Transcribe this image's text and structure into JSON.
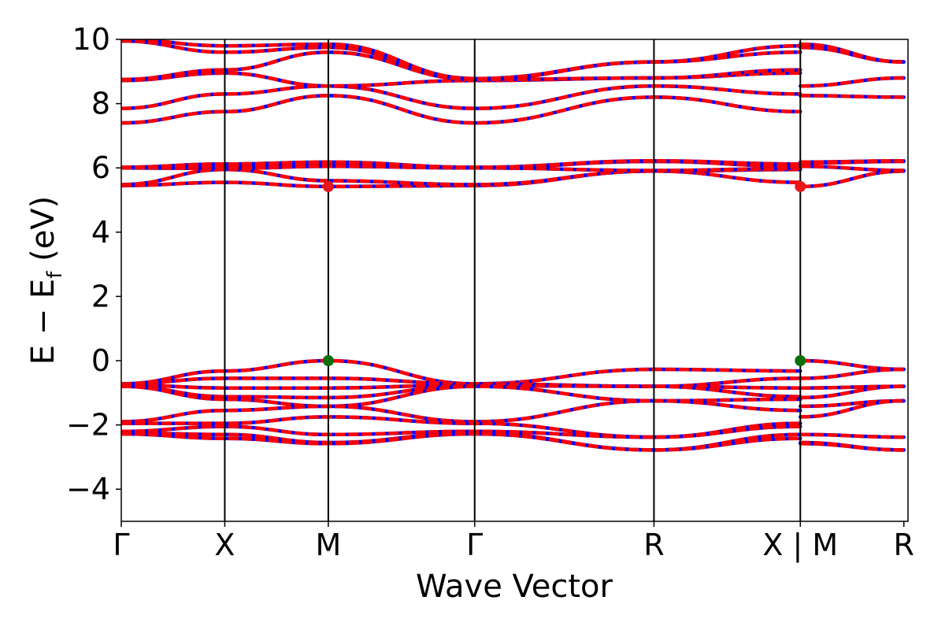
{
  "chart_data": {
    "type": "line",
    "title": "",
    "xlabel": "Wave Vector",
    "ylabel_main": "E − E",
    "ylabel_sub": "f",
    "ylabel_unit": " (eV)",
    "ylim": [
      -5,
      10
    ],
    "yticks": [
      -4,
      -2,
      0,
      2,
      4,
      6,
      8,
      10
    ],
    "ytick_labels": [
      "−4",
      "−2",
      "0",
      "2",
      "4",
      "6",
      "8",
      "10"
    ],
    "xlim": [
      0,
      7.6
    ],
    "kpoints": [
      {
        "label": "Γ",
        "x": 0.0
      },
      {
        "label": "X",
        "x": 1.0
      },
      {
        "label": "M",
        "x": 2.0
      },
      {
        "label": "Γ",
        "x": 3.414
      },
      {
        "label": "R",
        "x": 5.146
      },
      {
        "label": "X | M",
        "x": 6.56
      },
      {
        "label": "R",
        "x": 7.56
      }
    ],
    "colors": {
      "line_red": "#ff0000",
      "line_blue": "#0000ff",
      "cbm": "#e8151b",
      "vbm": "#0b6e0b",
      "axis": "#000000"
    },
    "band_segments": [
      {
        "x": [
          0,
          1.0,
          2.0,
          3.414,
          5.146,
          6.56
        ],
        "y": [
          -0.72,
          -0.32,
          0.0,
          -0.72,
          -0.27,
          -0.32
        ]
      },
      {
        "x": [
          0,
          1.0,
          2.0,
          3.414,
          5.146,
          6.56
        ],
        "y": [
          -0.72,
          -0.55,
          -0.55,
          -0.72,
          -0.8,
          -0.55
        ]
      },
      {
        "x": [
          0,
          1.0,
          2.0,
          3.414,
          5.146,
          6.56
        ],
        "y": [
          -0.75,
          -0.85,
          -0.85,
          -0.75,
          -0.8,
          -0.85
        ]
      },
      {
        "x": [
          0,
          1.0,
          2.0,
          3.414,
          5.146,
          6.56
        ],
        "y": [
          -0.78,
          -1.12,
          -1.15,
          -0.78,
          -0.8,
          -1.12
        ]
      },
      {
        "x": [
          0,
          1.0,
          2.0,
          3.414,
          5.146,
          6.56
        ],
        "y": [
          -0.8,
          -1.2,
          -1.42,
          -0.8,
          -1.25,
          -1.2
        ]
      },
      {
        "x": [
          0,
          1.0,
          2.0,
          3.414,
          5.146,
          6.56
        ],
        "y": [
          -1.9,
          -1.55,
          -1.42,
          -1.9,
          -1.25,
          -1.55
        ]
      },
      {
        "x": [
          0,
          1.0,
          2.0,
          3.414,
          5.146,
          6.56
        ],
        "y": [
          -1.95,
          -1.95,
          -1.75,
          -1.95,
          -2.38,
          -1.95
        ]
      },
      {
        "x": [
          0,
          1.0,
          2.0,
          3.414,
          5.146,
          6.56
        ],
        "y": [
          -2.2,
          -2.05,
          -2.3,
          -2.2,
          -2.38,
          -2.05
        ]
      },
      {
        "x": [
          0,
          1.0,
          2.0,
          3.414,
          5.146,
          6.56
        ],
        "y": [
          -2.25,
          -2.3,
          -2.55,
          -2.25,
          -2.78,
          -2.3
        ]
      },
      {
        "x": [
          0,
          1.0,
          2.0,
          3.414,
          5.146,
          6.56
        ],
        "y": [
          -2.28,
          -2.42,
          -2.58,
          -2.28,
          -2.78,
          -2.42
        ]
      },
      {
        "x": [
          6.56,
          7.56
        ],
        "y": [
          0.0,
          -0.27
        ]
      },
      {
        "x": [
          6.56,
          7.56
        ],
        "y": [
          -0.55,
          -0.27
        ]
      },
      {
        "x": [
          6.56,
          7.56
        ],
        "y": [
          -0.85,
          -0.8
        ]
      },
      {
        "x": [
          6.56,
          7.56
        ],
        "y": [
          -1.15,
          -0.8
        ]
      },
      {
        "x": [
          6.56,
          7.56
        ],
        "y": [
          -1.42,
          -1.25
        ]
      },
      {
        "x": [
          6.56,
          7.56
        ],
        "y": [
          -1.75,
          -1.25
        ]
      },
      {
        "x": [
          6.56,
          7.56
        ],
        "y": [
          -2.3,
          -2.38
        ]
      },
      {
        "x": [
          6.56,
          7.56
        ],
        "y": [
          -2.55,
          -2.78
        ]
      },
      {
        "x": [
          6.56,
          7.56
        ],
        "y": [
          -2.58,
          -2.78
        ]
      },
      {
        "x": [
          0,
          1.0,
          2.0,
          3.414,
          5.146,
          6.56
        ],
        "y": [
          5.45,
          5.55,
          5.42,
          5.45,
          5.9,
          5.55
        ]
      },
      {
        "x": [
          0,
          1.0,
          2.0,
          3.414,
          5.146,
          6.56
        ],
        "y": [
          5.48,
          5.95,
          5.6,
          5.48,
          5.9,
          5.95
        ]
      },
      {
        "x": [
          0,
          1.0,
          2.0,
          3.414,
          5.146,
          6.56
        ],
        "y": [
          6.0,
          5.98,
          6.05,
          6.0,
          5.92,
          5.98
        ]
      },
      {
        "x": [
          0,
          1.0,
          2.0,
          3.414,
          5.146,
          6.56
        ],
        "y": [
          6.0,
          6.05,
          6.15,
          6.0,
          6.2,
          6.05
        ]
      },
      {
        "x": [
          0,
          1.0,
          2.0,
          3.414,
          5.146,
          6.56
        ],
        "y": [
          6.02,
          6.12,
          6.18,
          6.02,
          6.22,
          6.12
        ]
      },
      {
        "x": [
          6.56,
          7.56
        ],
        "y": [
          5.42,
          5.9
        ]
      },
      {
        "x": [
          6.56,
          7.56
        ],
        "y": [
          6.05,
          5.92
        ]
      },
      {
        "x": [
          6.56,
          7.56
        ],
        "y": [
          6.15,
          6.2
        ]
      },
      {
        "x": [
          6.56,
          7.56
        ],
        "y": [
          6.18,
          6.22
        ]
      },
      {
        "x": [
          0,
          1.0,
          2.0,
          3.414,
          5.146,
          6.56
        ],
        "y": [
          7.4,
          7.75,
          8.25,
          7.4,
          8.2,
          7.75
        ]
      },
      {
        "x": [
          0,
          1.0,
          2.0,
          3.414,
          5.146,
          6.56
        ],
        "y": [
          7.85,
          8.3,
          8.55,
          7.85,
          8.55,
          8.3
        ]
      },
      {
        "x": [
          0,
          1.0,
          2.0,
          3.414,
          5.146,
          6.56
        ],
        "y": [
          8.72,
          8.95,
          8.55,
          8.72,
          8.8,
          8.95
        ]
      },
      {
        "x": [
          0,
          1.0,
          2.0,
          3.414,
          5.146,
          6.56
        ],
        "y": [
          8.75,
          9.05,
          9.6,
          8.75,
          8.8,
          9.05
        ]
      },
      {
        "x": [
          0,
          1.0,
          2.0,
          3.414,
          5.146,
          6.56
        ],
        "y": [
          9.95,
          9.6,
          9.75,
          8.75,
          9.3,
          9.6
        ]
      },
      {
        "x": [
          0,
          1.0,
          2.0,
          3.414,
          5.146,
          6.56
        ],
        "y": [
          10.0,
          9.8,
          9.85,
          8.78,
          9.3,
          9.8
        ]
      },
      {
        "x": [
          6.56,
          7.56
        ],
        "y": [
          8.25,
          8.2
        ]
      },
      {
        "x": [
          6.56,
          7.56
        ],
        "y": [
          8.55,
          8.8
        ]
      },
      {
        "x": [
          6.56,
          7.56
        ],
        "y": [
          9.75,
          9.3
        ]
      },
      {
        "x": [
          6.56,
          7.56
        ],
        "y": [
          9.85,
          9.3
        ]
      }
    ],
    "markers": [
      {
        "role": "vbm",
        "x": 2.0,
        "y": 0.0
      },
      {
        "role": "vbm",
        "x": 6.56,
        "y": 0.0
      },
      {
        "role": "cbm",
        "x": 2.0,
        "y": 5.42
      },
      {
        "role": "cbm",
        "x": 6.56,
        "y": 5.42
      }
    ]
  }
}
